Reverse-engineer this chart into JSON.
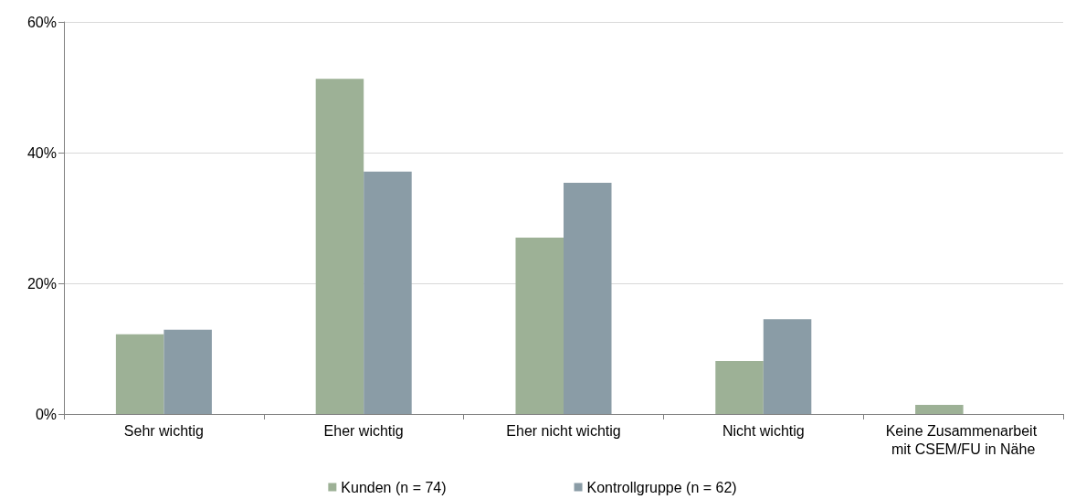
{
  "chart_data": {
    "type": "bar",
    "categories": [
      "Sehr wichtig",
      "Eher wichtig",
      "Eher nicht wichtig",
      "Nicht wichtig",
      "Keine Zusammenarbeit mit CSEM/FU in Nähe"
    ],
    "series": [
      {
        "name": "Kunden (n = 74)",
        "color": "#9db196",
        "values": [
          12.2,
          51.3,
          27.0,
          8.1,
          1.4
        ]
      },
      {
        "name": "Kontrollgruppe (n = 62)",
        "color": "#8a9ca6",
        "values": [
          12.9,
          37.1,
          35.4,
          14.5,
          0
        ]
      }
    ],
    "ylim": [
      0,
      60
    ],
    "yticks": [
      {
        "value": 0,
        "label": "0%"
      },
      {
        "value": 20,
        "label": "20%"
      },
      {
        "value": 40,
        "label": "40%"
      },
      {
        "value": 60,
        "label": "60%"
      }
    ],
    "grid": "y",
    "legend": "bottom"
  }
}
